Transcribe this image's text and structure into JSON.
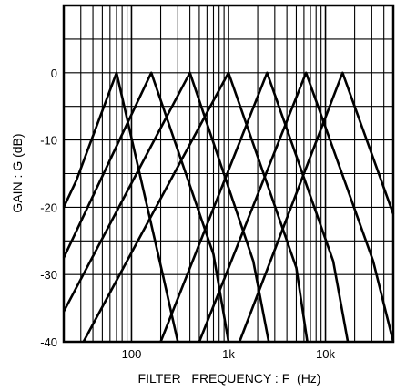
{
  "chart_data": {
    "type": "line",
    "title": "",
    "xlabel": "FILTER   FREQUENCY : F  (Hz)",
    "ylabel": "GAIN : G  (dB)",
    "x_scale": "log",
    "xlim": [
      20,
      50000
    ],
    "ylim": [
      -40,
      10
    ],
    "grid": true,
    "x_ticks": [
      {
        "value": 100,
        "label": "100"
      },
      {
        "value": 1000,
        "label": "1k"
      },
      {
        "value": 10000,
        "label": "10k"
      }
    ],
    "y_ticks": [
      {
        "value": 0,
        "label": "0"
      },
      {
        "value": -10,
        "label": "-10"
      },
      {
        "value": -20,
        "label": "-20"
      },
      {
        "value": -30,
        "label": "-30"
      },
      {
        "value": -40,
        "label": "-40"
      }
    ],
    "series": [
      {
        "points": [
          [
            20,
            -20
          ],
          [
            27,
            -16
          ],
          [
            70,
            0
          ],
          [
            210,
            -30
          ],
          [
            300,
            -40
          ]
        ]
      },
      {
        "points": [
          [
            20,
            -27.5
          ],
          [
            160,
            0
          ],
          [
            700,
            -27
          ],
          [
            1000,
            -40
          ]
        ]
      },
      {
        "points": [
          [
            20,
            -35.5
          ],
          [
            400,
            0
          ],
          [
            1800,
            -28
          ],
          [
            2600,
            -40
          ]
        ]
      },
      {
        "points": [
          [
            32,
            -40
          ],
          [
            1000,
            0
          ],
          [
            5000,
            -29
          ],
          [
            6500,
            -40
          ]
        ]
      },
      {
        "points": [
          [
            200,
            -40
          ],
          [
            2500,
            0
          ],
          [
            12000,
            -28
          ],
          [
            17000,
            -40
          ]
        ]
      },
      {
        "points": [
          [
            500,
            -40
          ],
          [
            6300,
            0
          ],
          [
            31000,
            -28
          ],
          [
            50000,
            -40
          ]
        ]
      },
      {
        "points": [
          [
            1300,
            -40
          ],
          [
            15000,
            0
          ],
          [
            50000,
            -21
          ]
        ]
      }
    ]
  }
}
